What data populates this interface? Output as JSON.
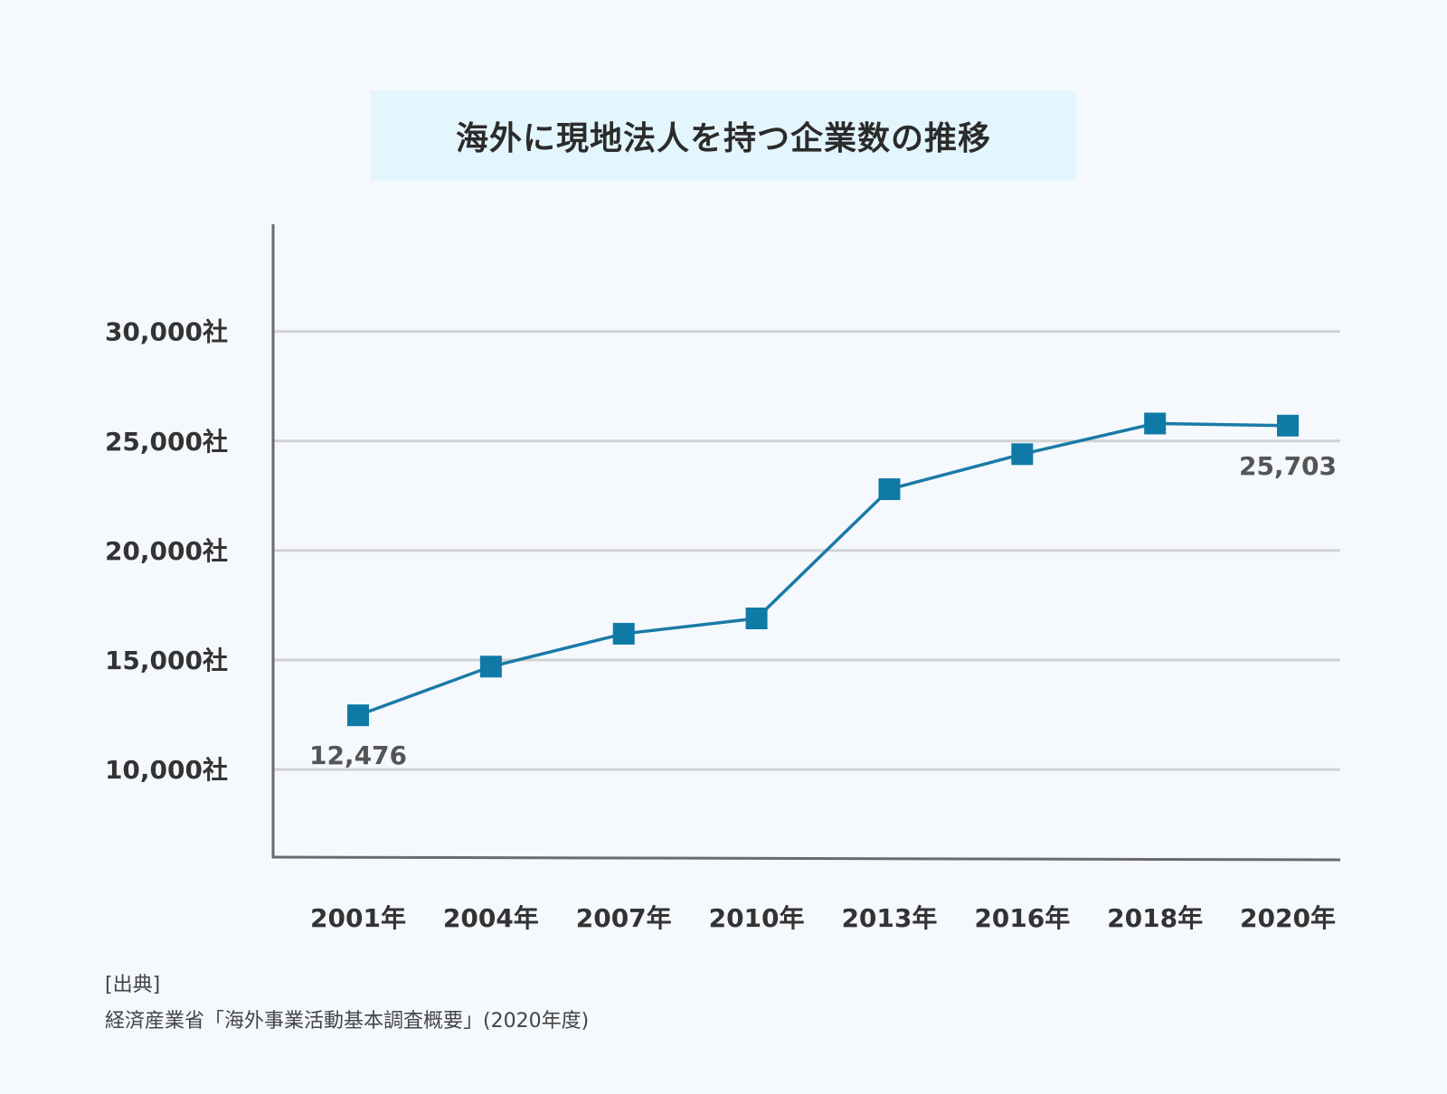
{
  "chart_data": {
    "type": "line",
    "title": "海外に現地法人を持つ企業数の推移",
    "categories": [
      "2001年",
      "2004年",
      "2007年",
      "2010年",
      "2013年",
      "2016年",
      "2018年",
      "2020年"
    ],
    "series": [
      {
        "values": [
          12476,
          14700,
          16200,
          16900,
          22800,
          24400,
          25800,
          25703
        ]
      }
    ],
    "y_ticks": [
      10000,
      15000,
      20000,
      25000,
      30000
    ],
    "y_tick_labels": [
      "10,000社",
      "15,000社",
      "20,000社",
      "25,000社",
      "30,000社"
    ],
    "ylim": [
      6000,
      34900
    ],
    "grid": true,
    "data_labels": [
      {
        "index": 0,
        "text": "12,476",
        "position": "below"
      },
      {
        "index": 7,
        "text": "25,703",
        "position": "below"
      }
    ],
    "colors": {
      "line": "#1a7aa6",
      "marker": "#0f7aa6",
      "grid": "#d2d2d2",
      "axis": "#6b6b6b"
    }
  },
  "source": {
    "heading": "[出典]",
    "text": "経済産業省「海外事業活動基本調査概要」(2020年度)"
  }
}
